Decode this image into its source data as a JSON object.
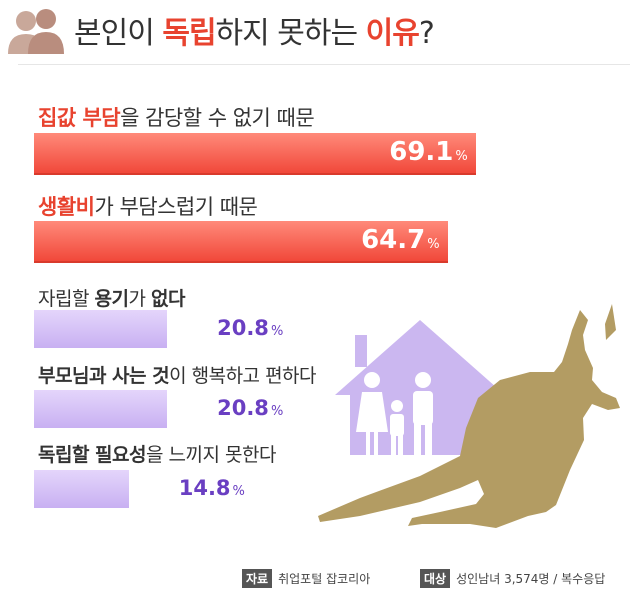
{
  "header": {
    "title_part1": "본인이 ",
    "title_highlight1": "독립",
    "title_part2": "하지 못하는 ",
    "title_highlight2": "이유",
    "title_part3": "?",
    "icon": "people-icon"
  },
  "chart_data": {
    "type": "bar",
    "orientation": "horizontal",
    "unit": "%",
    "xlim": [
      0,
      100
    ],
    "categories": [
      "집값 부담을 감당할 수 없기 때문",
      "생활비가 부담스럽기 때문",
      "자립할 용기가 없다",
      "부모님과 사는 것이 행복하고 편하다",
      "독립할 필요성을 느끼지 못한다"
    ],
    "values": [
      69.1,
      64.7,
      20.8,
      20.8,
      14.8
    ],
    "colors": {
      "top": "#f1483a",
      "other": "#c8b0f2",
      "other_text": "#6a3fc2"
    }
  },
  "labels": [
    {
      "p1": "집값 부담",
      "p2": "을 감당할 수 없기 때문"
    },
    {
      "p1": "생활비",
      "p2": "가 부담스럽기 때문"
    },
    {
      "p1": "자립할 ",
      "p2": "용기",
      "p3": "가 ",
      "p4": "없다"
    },
    {
      "p1": "부모님과 사는 것",
      "p2": "이 행복하고 편하다"
    },
    {
      "p1": "독립할 필요성",
      "p2": "을 느끼지 못한다"
    }
  ],
  "value_labels": [
    "69.1",
    "64.7",
    "20.8",
    "20.8",
    "14.8"
  ],
  "pct_sign": "%",
  "illustration": {
    "house": "house-icon",
    "family": "family-icon",
    "kangaroo": "kangaroo-icon"
  },
  "footer": {
    "source_tag": "자료",
    "source": "취업포털 잡코리아",
    "target_tag": "대상",
    "target": "성인남녀 3,574명 / 복수응답"
  }
}
